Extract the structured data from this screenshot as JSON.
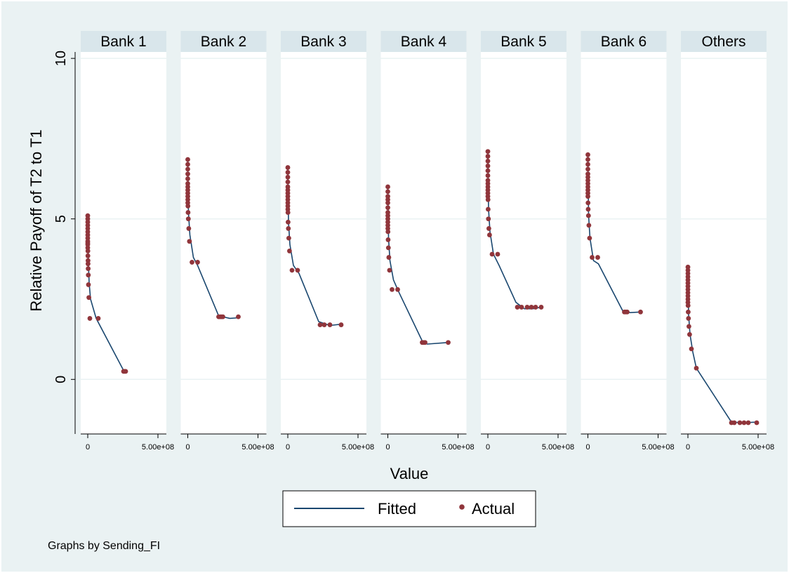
{
  "chart_data": {
    "type": "line",
    "ylabel": "Relative Payoff of T2 to T1",
    "xlabel": "Value",
    "note": "Graphs by Sending_FI",
    "ylim": [
      -1.7,
      10.2
    ],
    "yticks": [
      0,
      5,
      10
    ],
    "xlim": [
      -10000000.0,
      520000000.0
    ],
    "xticks": [
      {
        "value": 0,
        "label": "0"
      },
      {
        "value": 500000000,
        "label": "5.00e+08"
      }
    ],
    "grid": true,
    "legend_position": "bottom",
    "legend": [
      {
        "name": "Fitted",
        "kind": "line"
      },
      {
        "name": "Actual",
        "kind": "marker"
      }
    ],
    "colors": {
      "fitted": "#1a476f",
      "actual": "#90353b",
      "outer_background": "#eaf2f3",
      "strip": "#d9e6eb",
      "grid": "#eaf2f3"
    },
    "panels": [
      {
        "title": "Bank 1",
        "actual": {
          "x": [
            0,
            0,
            0,
            0,
            0,
            0,
            0,
            0,
            0,
            0,
            0,
            0,
            1000000,
            1000000,
            2000000,
            2000000,
            3000000,
            4000000,
            5000000,
            8000000,
            15000000,
            75000000,
            255000000,
            262000000,
            270000000
          ],
          "y": [
            5.1,
            5.0,
            4.9,
            4.8,
            4.7,
            4.6,
            4.5,
            4.4,
            4.3,
            4.25,
            4.2,
            4.1,
            4.0,
            3.85,
            3.7,
            3.6,
            3.45,
            3.25,
            2.95,
            2.55,
            1.9,
            1.9,
            0.25,
            0.25,
            0.25
          ]
        },
        "fitted": {
          "x": [
            0,
            2000000,
            5000000,
            10000000,
            20000000,
            60000000,
            255000000,
            270000000
          ],
          "y": [
            5.05,
            4.2,
            3.6,
            3.0,
            2.5,
            1.9,
            0.28,
            0.26
          ]
        }
      },
      {
        "title": "Bank 2",
        "actual": {
          "x": [
            0,
            0,
            0,
            0,
            0,
            0,
            0,
            0,
            0,
            0,
            0,
            0,
            1000000,
            2000000,
            4000000,
            7000000,
            12000000,
            30000000,
            70000000,
            220000000,
            230000000,
            240000000,
            250000000,
            360000000
          ],
          "y": [
            6.85,
            6.7,
            6.55,
            6.4,
            6.25,
            6.1,
            6.0,
            5.9,
            5.8,
            5.7,
            5.6,
            5.5,
            5.4,
            5.2,
            5.0,
            4.7,
            4.3,
            3.65,
            3.65,
            1.95,
            1.95,
            1.95,
            1.95,
            1.95
          ]
        },
        "fitted": {
          "x": [
            0,
            5000000,
            15000000,
            40000000,
            70000000,
            220000000,
            300000000,
            360000000
          ],
          "y": [
            6.8,
            5.2,
            4.5,
            3.8,
            3.55,
            1.98,
            1.9,
            1.92
          ]
        }
      },
      {
        "title": "Bank 3",
        "actual": {
          "x": [
            0,
            0,
            0,
            0,
            0,
            0,
            0,
            0,
            0,
            0,
            0,
            0,
            1000000,
            2000000,
            4000000,
            7000000,
            12000000,
            30000000,
            70000000,
            230000000,
            260000000,
            300000000,
            380000000
          ],
          "y": [
            6.6,
            6.45,
            6.3,
            6.15,
            6.0,
            5.9,
            5.8,
            5.7,
            5.6,
            5.5,
            5.4,
            5.3,
            5.2,
            4.9,
            4.7,
            4.4,
            4.0,
            3.4,
            3.4,
            1.7,
            1.7,
            1.7,
            1.7
          ]
        },
        "fitted": {
          "x": [
            0,
            5000000,
            15000000,
            40000000,
            80000000,
            220000000,
            300000000,
            380000000
          ],
          "y": [
            6.55,
            4.9,
            4.2,
            3.55,
            3.3,
            1.8,
            1.68,
            1.72
          ]
        }
      },
      {
        "title": "Bank 4",
        "actual": {
          "x": [
            0,
            0,
            0,
            0,
            0,
            0,
            0,
            0,
            0,
            0,
            0,
            0,
            1000000,
            2000000,
            4000000,
            7000000,
            12000000,
            30000000,
            70000000,
            245000000,
            255000000,
            265000000,
            430000000
          ],
          "y": [
            6.0,
            5.85,
            5.7,
            5.6,
            5.5,
            5.35,
            5.2,
            5.1,
            5.0,
            4.9,
            4.8,
            4.7,
            4.6,
            4.35,
            4.1,
            3.8,
            3.4,
            2.8,
            2.8,
            1.15,
            1.15,
            1.15,
            1.15
          ]
        },
        "fitted": {
          "x": [
            0,
            5000000,
            15000000,
            40000000,
            75000000,
            250000000,
            280000000,
            430000000
          ],
          "y": [
            5.95,
            4.4,
            3.7,
            3.1,
            2.75,
            1.15,
            1.1,
            1.15
          ]
        }
      },
      {
        "title": "Bank 5",
        "actual": {
          "x": [
            0,
            0,
            0,
            0,
            0,
            0,
            0,
            0,
            0,
            0,
            0,
            0,
            1000000,
            2000000,
            4000000,
            7000000,
            12000000,
            30000000,
            70000000,
            210000000,
            240000000,
            280000000,
            310000000,
            340000000,
            380000000
          ],
          "y": [
            7.1,
            6.95,
            6.8,
            6.65,
            6.5,
            6.35,
            6.2,
            6.1,
            6.0,
            5.9,
            5.8,
            5.7,
            5.6,
            5.3,
            5.0,
            4.7,
            4.5,
            3.9,
            3.9,
            2.25,
            2.25,
            2.25,
            2.25,
            2.25,
            2.25
          ]
        },
        "fitted": {
          "x": [
            0,
            5000000,
            15000000,
            40000000,
            80000000,
            200000000,
            260000000,
            320000000,
            380000000
          ],
          "y": [
            7.05,
            5.3,
            4.6,
            3.9,
            3.55,
            2.4,
            2.2,
            2.2,
            2.25
          ]
        }
      },
      {
        "title": "Bank 6",
        "actual": {
          "x": [
            0,
            0,
            0,
            0,
            0,
            0,
            0,
            0,
            0,
            0,
            0,
            0,
            1000000,
            2000000,
            4000000,
            7000000,
            12000000,
            30000000,
            70000000,
            260000000,
            270000000,
            280000000,
            375000000
          ],
          "y": [
            7.0,
            6.85,
            6.7,
            6.55,
            6.4,
            6.3,
            6.2,
            6.1,
            6.0,
            5.9,
            5.8,
            5.7,
            5.5,
            5.3,
            5.1,
            4.8,
            4.4,
            3.8,
            3.8,
            2.1,
            2.1,
            2.1,
            2.1
          ]
        },
        "fitted": {
          "x": [
            0,
            5000000,
            15000000,
            40000000,
            75000000,
            250000000,
            300000000,
            375000000
          ],
          "y": [
            6.95,
            5.1,
            4.4,
            3.7,
            3.6,
            2.12,
            2.08,
            2.1
          ]
        }
      },
      {
        "title": "Others",
        "actual": {
          "x": [
            0,
            0,
            0,
            0,
            0,
            0,
            0,
            0,
            0,
            0,
            0,
            0,
            1000000,
            2000000,
            4000000,
            7000000,
            12000000,
            25000000,
            60000000,
            310000000,
            330000000,
            370000000,
            400000000,
            430000000,
            490000000
          ],
          "y": [
            3.5,
            3.4,
            3.3,
            3.2,
            3.1,
            3.0,
            2.9,
            2.8,
            2.7,
            2.6,
            2.5,
            2.4,
            2.3,
            2.1,
            1.9,
            1.65,
            1.4,
            0.95,
            0.35,
            -1.35,
            -1.35,
            -1.35,
            -1.35,
            -1.35,
            -1.35
          ]
        },
        "fitted": {
          "x": [
            0,
            5000000,
            15000000,
            35000000,
            60000000,
            310000000,
            400000000,
            490000000
          ],
          "y": [
            3.45,
            2.0,
            1.4,
            0.85,
            0.35,
            -1.33,
            -1.35,
            -1.33
          ]
        }
      }
    ]
  }
}
